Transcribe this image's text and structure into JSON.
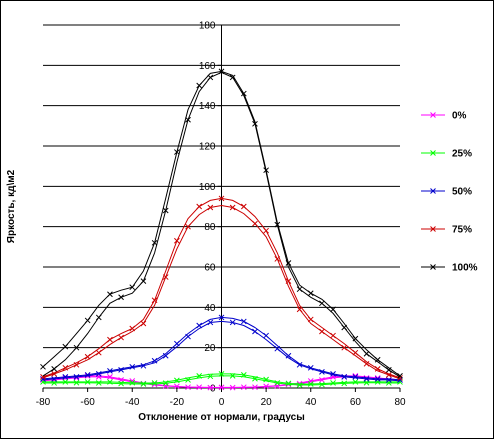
{
  "chart_data": {
    "type": "line",
    "title": "",
    "xlabel": "Отклонение от нормали, градусы",
    "ylabel": "Яркость, кд\\м2",
    "xlim": [
      -80,
      80
    ],
    "ylim": [
      0,
      180
    ],
    "x_ticks": [
      "-80",
      "-60",
      "-40",
      "-20",
      "0",
      "20",
      "40",
      "60",
      "80"
    ],
    "y_ticks": [
      "0",
      "20",
      "40",
      "60",
      "80",
      "100",
      "120",
      "140",
      "160",
      "180"
    ],
    "grid": "horizontal",
    "legend_position": "right",
    "series": [
      {
        "name": "0%",
        "color": "#ff00ff",
        "runs": [
          {
            "x": [
              -80,
              -75,
              -70,
              -65,
              -60,
              -55,
              -50,
              -45,
              -40,
              -35,
              -30,
              -25,
              -20,
              -15,
              -10,
              -5,
              0,
              5,
              10,
              15,
              20,
              25,
              30,
              35,
              40,
              45,
              50,
              55,
              60,
              65,
              70,
              75,
              80
            ],
            "y": [
              4,
              4.5,
              5,
              5.5,
              6,
              6,
              5.5,
              4.5,
              3.5,
              2.5,
              1.8,
              1.2,
              0.8,
              0.5,
              0.4,
              0.3,
              0.3,
              0.3,
              0.4,
              0.5,
              0.8,
              1.2,
              1.8,
              2.5,
              3.5,
              4.5,
              5.5,
              6,
              6,
              5.5,
              5,
              4.5,
              4
            ]
          },
          {
            "x": [
              -80,
              -75,
              -70,
              -65,
              -60,
              -55,
              -50,
              -45,
              -40,
              -35,
              -30,
              -25,
              -20,
              -15,
              -10,
              -5,
              0,
              5,
              10,
              15,
              20,
              25,
              30,
              35,
              40,
              45,
              50,
              55,
              60,
              65,
              70,
              75,
              80
            ],
            "y": [
              3.5,
              4,
              4.5,
              5,
              5.5,
              5.5,
              5,
              4,
              3,
              2.2,
              1.5,
              1,
              0.7,
              0.4,
              0.3,
              0.2,
              0.2,
              0.2,
              0.3,
              0.4,
              0.7,
              1,
              1.5,
              2.2,
              3,
              4,
              5,
              5.5,
              5.5,
              5,
              4.5,
              4,
              3.5
            ]
          }
        ]
      },
      {
        "name": "25%",
        "color": "#00ff00",
        "runs": [
          {
            "x": [
              -80,
              -75,
              -70,
              -65,
              -60,
              -55,
              -50,
              -45,
              -40,
              -35,
              -30,
              -25,
              -20,
              -15,
              -10,
              -5,
              0,
              5,
              10,
              15,
              20,
              25,
              30,
              35,
              40,
              45,
              50,
              55,
              60,
              65,
              70,
              75,
              80
            ],
            "y": [
              3,
              3,
              3,
              3,
              3,
              3,
              3,
              2.8,
              2.6,
              2.5,
              2.5,
              3,
              3.8,
              5,
              6,
              6.8,
              7,
              7,
              6.5,
              5.5,
              4.2,
              3,
              2.3,
              2,
              2,
              2.2,
              2.5,
              2.8,
              3,
              3,
              3,
              3,
              3
            ]
          },
          {
            "x": [
              -80,
              -75,
              -70,
              -65,
              -60,
              -55,
              -50,
              -45,
              -40,
              -35,
              -30,
              -25,
              -20,
              -15,
              -10,
              -5,
              0,
              5,
              10,
              15,
              20,
              25,
              30,
              35,
              40,
              45,
              50,
              55,
              60,
              65,
              70,
              75,
              80
            ],
            "y": [
              2.5,
              2.5,
              2.6,
              2.6,
              2.6,
              2.5,
              2.4,
              2.2,
              2,
              2,
              2,
              2.4,
              3,
              4,
              5,
              5.8,
              6,
              6,
              5.6,
              4.6,
              3.5,
              2.5,
              1.8,
              1.5,
              1.5,
              1.7,
              2,
              2.3,
              2.5,
              2.6,
              2.6,
              2.5,
              2.5
            ]
          }
        ]
      },
      {
        "name": "50%",
        "color": "#0000cc",
        "runs": [
          {
            "x": [
              -80,
              -75,
              -70,
              -65,
              -60,
              -55,
              -50,
              -45,
              -40,
              -35,
              -30,
              -25,
              -20,
              -15,
              -10,
              -5,
              0,
              5,
              10,
              15,
              20,
              25,
              30,
              35,
              40,
              45,
              50,
              55,
              60,
              65,
              70,
              75,
              80
            ],
            "y": [
              4.5,
              5,
              5.5,
              6,
              6.5,
              7.5,
              8.5,
              9.5,
              10.5,
              11.5,
              13.5,
              17,
              22,
              27,
              31,
              34,
              35,
              34.5,
              33,
              30,
              26,
              21,
              16,
              12,
              10,
              8.5,
              7,
              6,
              5.5,
              5,
              4.5,
              4.5,
              4
            ]
          },
          {
            "x": [
              -80,
              -75,
              -70,
              -65,
              -60,
              -55,
              -50,
              -45,
              -40,
              -35,
              -30,
              -25,
              -20,
              -15,
              -10,
              -5,
              0,
              5,
              10,
              15,
              20,
              25,
              30,
              35,
              40,
              45,
              50,
              55,
              60,
              65,
              70,
              75,
              80
            ],
            "y": [
              4,
              4.5,
              5,
              5.5,
              6,
              7,
              8,
              9,
              10,
              11,
              12.5,
              16,
              20.5,
              25.5,
              29.5,
              32.5,
              33,
              32.5,
              31,
              28,
              24,
              19.5,
              15,
              11.5,
              9.5,
              8,
              6.5,
              5.5,
              5,
              4.5,
              4,
              4,
              3.5
            ]
          }
        ]
      },
      {
        "name": "75%",
        "color": "#cc0000",
        "runs": [
          {
            "x": [
              -80,
              -75,
              -70,
              -65,
              -60,
              -55,
              -50,
              -45,
              -40,
              -35,
              -30,
              -25,
              -20,
              -15,
              -10,
              -5,
              0,
              5,
              10,
              15,
              20,
              25,
              30,
              35,
              40,
              45,
              50,
              55,
              60,
              65,
              70,
              75,
              80
            ],
            "y": [
              5.5,
              7.5,
              10,
              12.5,
              15.5,
              19.5,
              24,
              27,
              29.5,
              34,
              43.5,
              58,
              73,
              84,
              90,
              93,
              94,
              93,
              90,
              85,
              78,
              67,
              53,
              41,
              34,
              30,
              26,
              22,
              17.5,
              13,
              9.5,
              7,
              5
            ]
          },
          {
            "x": [
              -80,
              -75,
              -70,
              -65,
              -60,
              -55,
              -50,
              -45,
              -40,
              -35,
              -30,
              -25,
              -20,
              -15,
              -10,
              -5,
              0,
              5,
              10,
              15,
              20,
              25,
              30,
              35,
              40,
              45,
              50,
              55,
              60,
              65,
              70,
              75,
              80
            ],
            "y": [
              5,
              7,
              9,
              11.5,
              14,
              17.5,
              21.5,
              25,
              28,
              32,
              41,
              55,
              69,
              80,
              86,
              89.5,
              90.5,
              89.5,
              86.5,
              81.5,
              75,
              64,
              50.5,
              39,
              32,
              28,
              24,
              20,
              16,
              12,
              8.5,
              6.5,
              4.5
            ]
          }
        ]
      },
      {
        "name": "100%",
        "color": "#000000",
        "runs": [
          {
            "x": [
              -80,
              -75,
              -70,
              -65,
              -60,
              -55,
              -50,
              -45,
              -40,
              -35,
              -30,
              -25,
              -20,
              -15,
              -10,
              -5,
              0,
              5,
              10,
              15,
              20,
              25,
              30,
              35,
              40,
              45,
              50,
              55,
              60,
              65,
              70,
              75,
              80
            ],
            "y": [
              10.5,
              15.5,
              20.5,
              27,
              33.5,
              41,
              46.5,
              48.5,
              50,
              58,
              72,
              94,
              117,
              138,
              150,
              156,
              157,
              155,
              146,
              132,
              108,
              82,
              62,
              51,
              47,
              44,
              39,
              32,
              24.5,
              19,
              14,
              10,
              6
            ]
          },
          {
            "x": [
              -80,
              -75,
              -70,
              -65,
              -60,
              -55,
              -50,
              -45,
              -40,
              -35,
              -30,
              -25,
              -20,
              -15,
              -10,
              -5,
              0,
              5,
              10,
              15,
              20,
              25,
              30,
              35,
              40,
              45,
              50,
              55,
              60,
              65,
              70,
              75,
              80
            ],
            "y": [
              6,
              9.5,
              14,
              20,
              27,
              35,
              42,
              45,
              47,
              53,
              67,
              88,
              112,
              133,
              147,
              154,
              156.5,
              154,
              145,
              131,
              107,
              81,
              60,
              49,
              45,
              42,
              37,
              30,
              23,
              17,
              13,
              9,
              5.5
            ]
          }
        ]
      }
    ]
  }
}
